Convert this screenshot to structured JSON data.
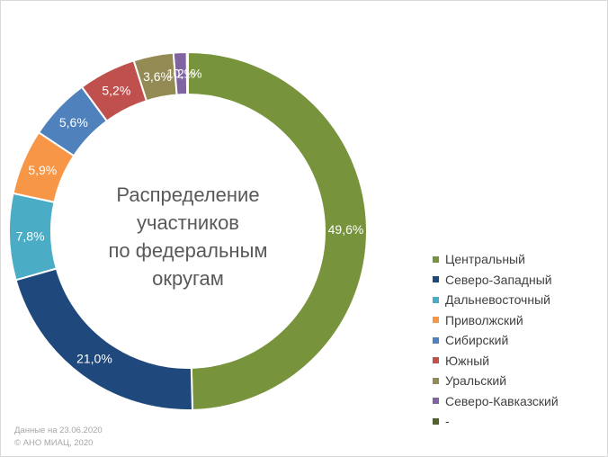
{
  "chart_data": {
    "type": "pie",
    "title": "Распределение участников по федеральным округам",
    "title_lines": [
      "Распределение",
      "участников",
      "по федеральным",
      "округам"
    ],
    "categories": [
      "Центральный",
      "Северо-Западный",
      "Дальневосточный",
      "Приволжский",
      "Сибирский",
      "Южный",
      "Уральский",
      "Северо-Кавказский",
      "-"
    ],
    "values": [
      49.6,
      21.0,
      7.8,
      5.9,
      5.6,
      5.2,
      3.6,
      1.2,
      0.1
    ],
    "data_labels": [
      "49,6%",
      "21,0%",
      "7,8%",
      "5,9%",
      "5,6%",
      "5,2%",
      "3,6%",
      "1,2%",
      "0,1%"
    ],
    "colors": [
      "#77933c",
      "#1f497d",
      "#4bacc6",
      "#f79646",
      "#4f81bd",
      "#c0504d",
      "#948a54",
      "#8064a2",
      "#4f6228"
    ],
    "legend_position": "right"
  },
  "footer": {
    "line1": "Данные на 23.06.2020",
    "line2": "© АНО МИАЦ, 2020"
  }
}
